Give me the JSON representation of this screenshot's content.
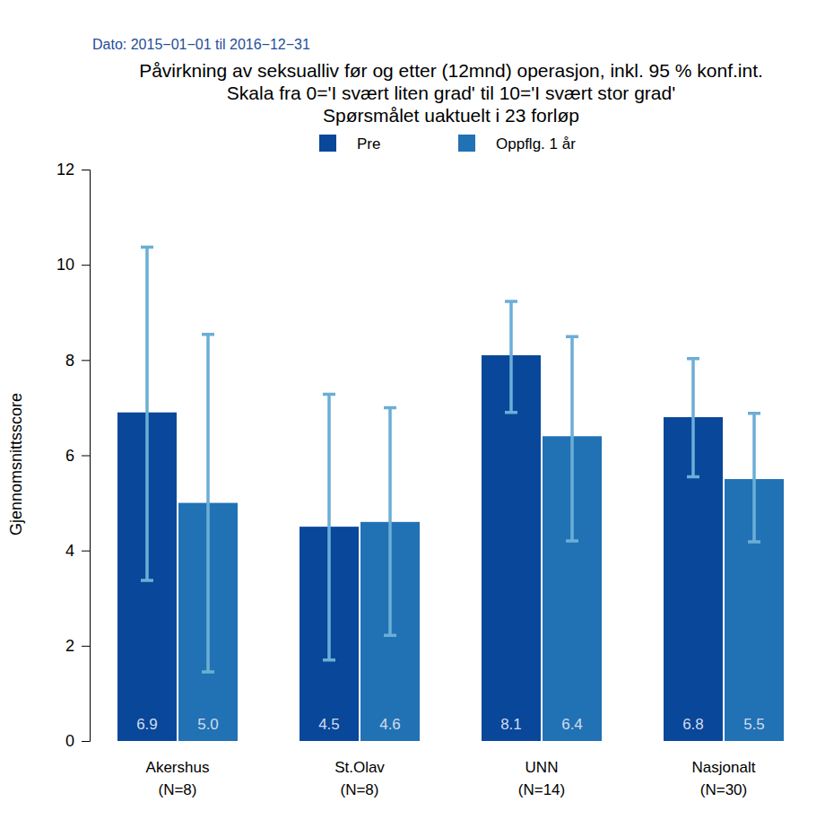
{
  "chart_data": {
    "type": "bar",
    "annotation": "Dato: 2015−01−01 til 2016−12−31",
    "title": "Påvirkning av seksualliv før og etter (12mnd) operasjon, inkl. 95 % konf.int.",
    "subtitle": [
      "Skala fra 0='I svært liten grad' til 10='I svært stor grad'",
      "Spørsmålet uaktuelt i 23 forløp"
    ],
    "y_label": "Gjennomsnittsscore",
    "categories": [
      "Akershus\n(N=8)",
      "St.Olav\n(N=8)",
      "UNN\n(N=14)",
      "Nasjonalt\n(N=30)"
    ],
    "series": [
      {
        "name": "Pre",
        "color": "#08479a",
        "values": [
          6.9,
          4.5,
          8.1,
          6.8
        ],
        "value_labels": [
          "6.9",
          "4.5",
          "8.1",
          "6.8"
        ],
        "ci_low": [
          3.37,
          1.7,
          6.9,
          5.55
        ],
        "ci_high": [
          10.37,
          7.28,
          9.23,
          8.03
        ]
      },
      {
        "name": "Oppflg. 1 år",
        "color": "#2171b5",
        "values": [
          5.0,
          4.6,
          6.4,
          5.5
        ],
        "value_labels": [
          "5.0",
          "4.6",
          "6.4",
          "5.5"
        ],
        "ci_low": [
          1.45,
          2.22,
          4.2,
          4.18
        ],
        "ci_high": [
          8.54,
          7.0,
          8.49,
          6.88
        ]
      }
    ],
    "ylim": [
      0,
      12
    ],
    "yticks": [
      0,
      2,
      4,
      6,
      8,
      10,
      12
    ],
    "legend": "top",
    "data_labels": true,
    "grid": false
  }
}
